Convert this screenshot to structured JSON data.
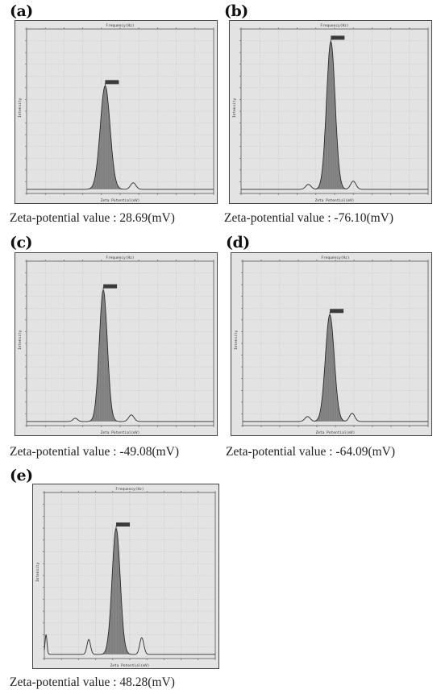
{
  "panels": [
    {
      "letter": "(a)",
      "top_axis": "Frequency(Hz)",
      "bottom_axis": "Zeta Potential(mV)",
      "y_axis": "Intensity",
      "caption": "Zeta-potential value : 28.69(mV)"
    },
    {
      "letter": "(b)",
      "top_axis": "Frequency(Hz)",
      "bottom_axis": "Zeta Potential(mV)",
      "y_axis": "Intensity",
      "caption": "Zeta-potential value : -76.10(mV)"
    },
    {
      "letter": "(c)",
      "top_axis": "Frequency(Hz)",
      "bottom_axis": "Zeta Potential(mV)",
      "y_axis": "Intensity",
      "caption": "Zeta-potential value : -49.08(mV)"
    },
    {
      "letter": "(d)",
      "top_axis": "Frequency(Hz)",
      "bottom_axis": "Zeta Potential(mV)",
      "y_axis": "Intensity",
      "caption": "Zeta-potential value : -64.09(mV)"
    },
    {
      "letter": "(e)",
      "top_axis": "Frequency(Hz)",
      "bottom_axis": "Zeta Potential(mV)",
      "y_axis": "Intensity",
      "caption": "Zeta-potential value : 48.28(mV)"
    }
  ],
  "chart_data": [
    {
      "type": "area",
      "xlabel": "Zeta Potential(mV)",
      "ylabel": "Intensity",
      "x2label": "Frequency(Hz)",
      "grid": true,
      "peaks": [
        {
          "center": 0.42,
          "height": 0.63,
          "width": 0.055,
          "filled": true
        },
        {
          "center": 0.57,
          "height": 0.04,
          "width": 0.03,
          "filled": false
        }
      ]
    },
    {
      "type": "area",
      "xlabel": "Zeta Potential(mV)",
      "ylabel": "Intensity",
      "x2label": "Frequency(Hz)",
      "grid": true,
      "peaks": [
        {
          "center": 0.48,
          "height": 0.9,
          "width": 0.048,
          "filled": true
        },
        {
          "center": 0.36,
          "height": 0.03,
          "width": 0.03,
          "filled": false
        },
        {
          "center": 0.6,
          "height": 0.05,
          "width": 0.03,
          "filled": false
        }
      ]
    },
    {
      "type": "area",
      "xlabel": "Zeta Potential(mV)",
      "ylabel": "Intensity",
      "x2label": "Frequency(Hz)",
      "grid": true,
      "peaks": [
        {
          "center": 0.41,
          "height": 0.8,
          "width": 0.045,
          "filled": true
        },
        {
          "center": 0.26,
          "height": 0.02,
          "width": 0.025,
          "filled": false
        },
        {
          "center": 0.56,
          "height": 0.04,
          "width": 0.03,
          "filled": false
        }
      ]
    },
    {
      "type": "area",
      "xlabel": "Zeta Potential(mV)",
      "ylabel": "Intensity",
      "x2label": "Frequency(Hz)",
      "grid": true,
      "peaks": [
        {
          "center": 0.47,
          "height": 0.65,
          "width": 0.05,
          "filled": true
        },
        {
          "center": 0.35,
          "height": 0.03,
          "width": 0.03,
          "filled": false
        },
        {
          "center": 0.59,
          "height": 0.05,
          "width": 0.03,
          "filled": false
        }
      ]
    },
    {
      "type": "area",
      "xlabel": "Zeta Potential(mV)",
      "ylabel": "Intensity",
      "x2label": "Frequency(Hz)",
      "grid": true,
      "peaks": [
        {
          "center": 0.42,
          "height": 0.76,
          "width": 0.05,
          "filled": true
        },
        {
          "center": 0.26,
          "height": 0.09,
          "width": 0.022,
          "filled": false
        },
        {
          "center": 0.57,
          "height": 0.1,
          "width": 0.025,
          "filled": false
        },
        {
          "center": 0.01,
          "height": 0.12,
          "width": 0.012,
          "filled": false
        }
      ]
    }
  ],
  "colors": {
    "plot_bg": "#e3e3e3",
    "grid": "#b8b8b8",
    "fill": "#8a8a8a",
    "curve": "#2b2b2b",
    "marker": "#3a3a3a"
  }
}
